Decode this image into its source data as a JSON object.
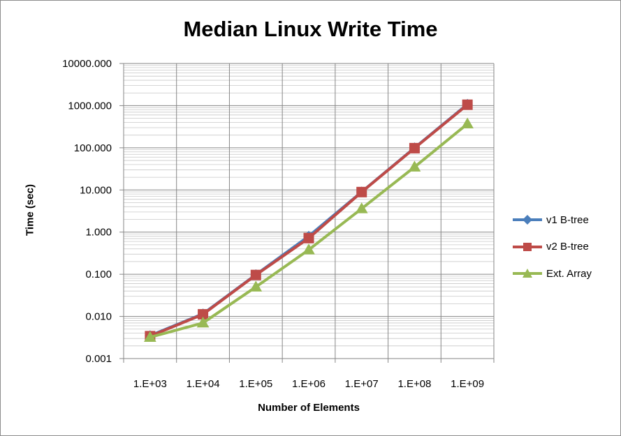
{
  "chart_data": {
    "type": "line",
    "title": "Median Linux Write Time",
    "xlabel": "Number of Elements",
    "ylabel": "Time (sec)",
    "y_scale": "log",
    "ylim": [
      0.001,
      10000
    ],
    "grid": true,
    "legend_position": "right",
    "categories": [
      "1.E+03",
      "1.E+04",
      "1.E+05",
      "1.E+06",
      "1.E+07",
      "1.E+08",
      "1.E+09"
    ],
    "y_tick_labels": [
      "0.001",
      "0.010",
      "0.100",
      "1.000",
      "10.000",
      "100.000",
      "1000.000",
      "10000.000"
    ],
    "series": [
      {
        "name": "v1 B-tree",
        "color": "#4a7ebb",
        "marker": "diamond",
        "values": [
          0.0035,
          0.0115,
          0.098,
          0.8,
          9.0,
          100,
          1080
        ]
      },
      {
        "name": "v2 B-tree",
        "color": "#be4b48",
        "marker": "square",
        "values": [
          0.0034,
          0.0112,
          0.096,
          0.72,
          8.9,
          98,
          1050
        ]
      },
      {
        "name": "Ext. Array",
        "color": "#98b954",
        "marker": "triangle",
        "values": [
          0.0032,
          0.007,
          0.05,
          0.38,
          3.6,
          35,
          370
        ]
      }
    ]
  }
}
